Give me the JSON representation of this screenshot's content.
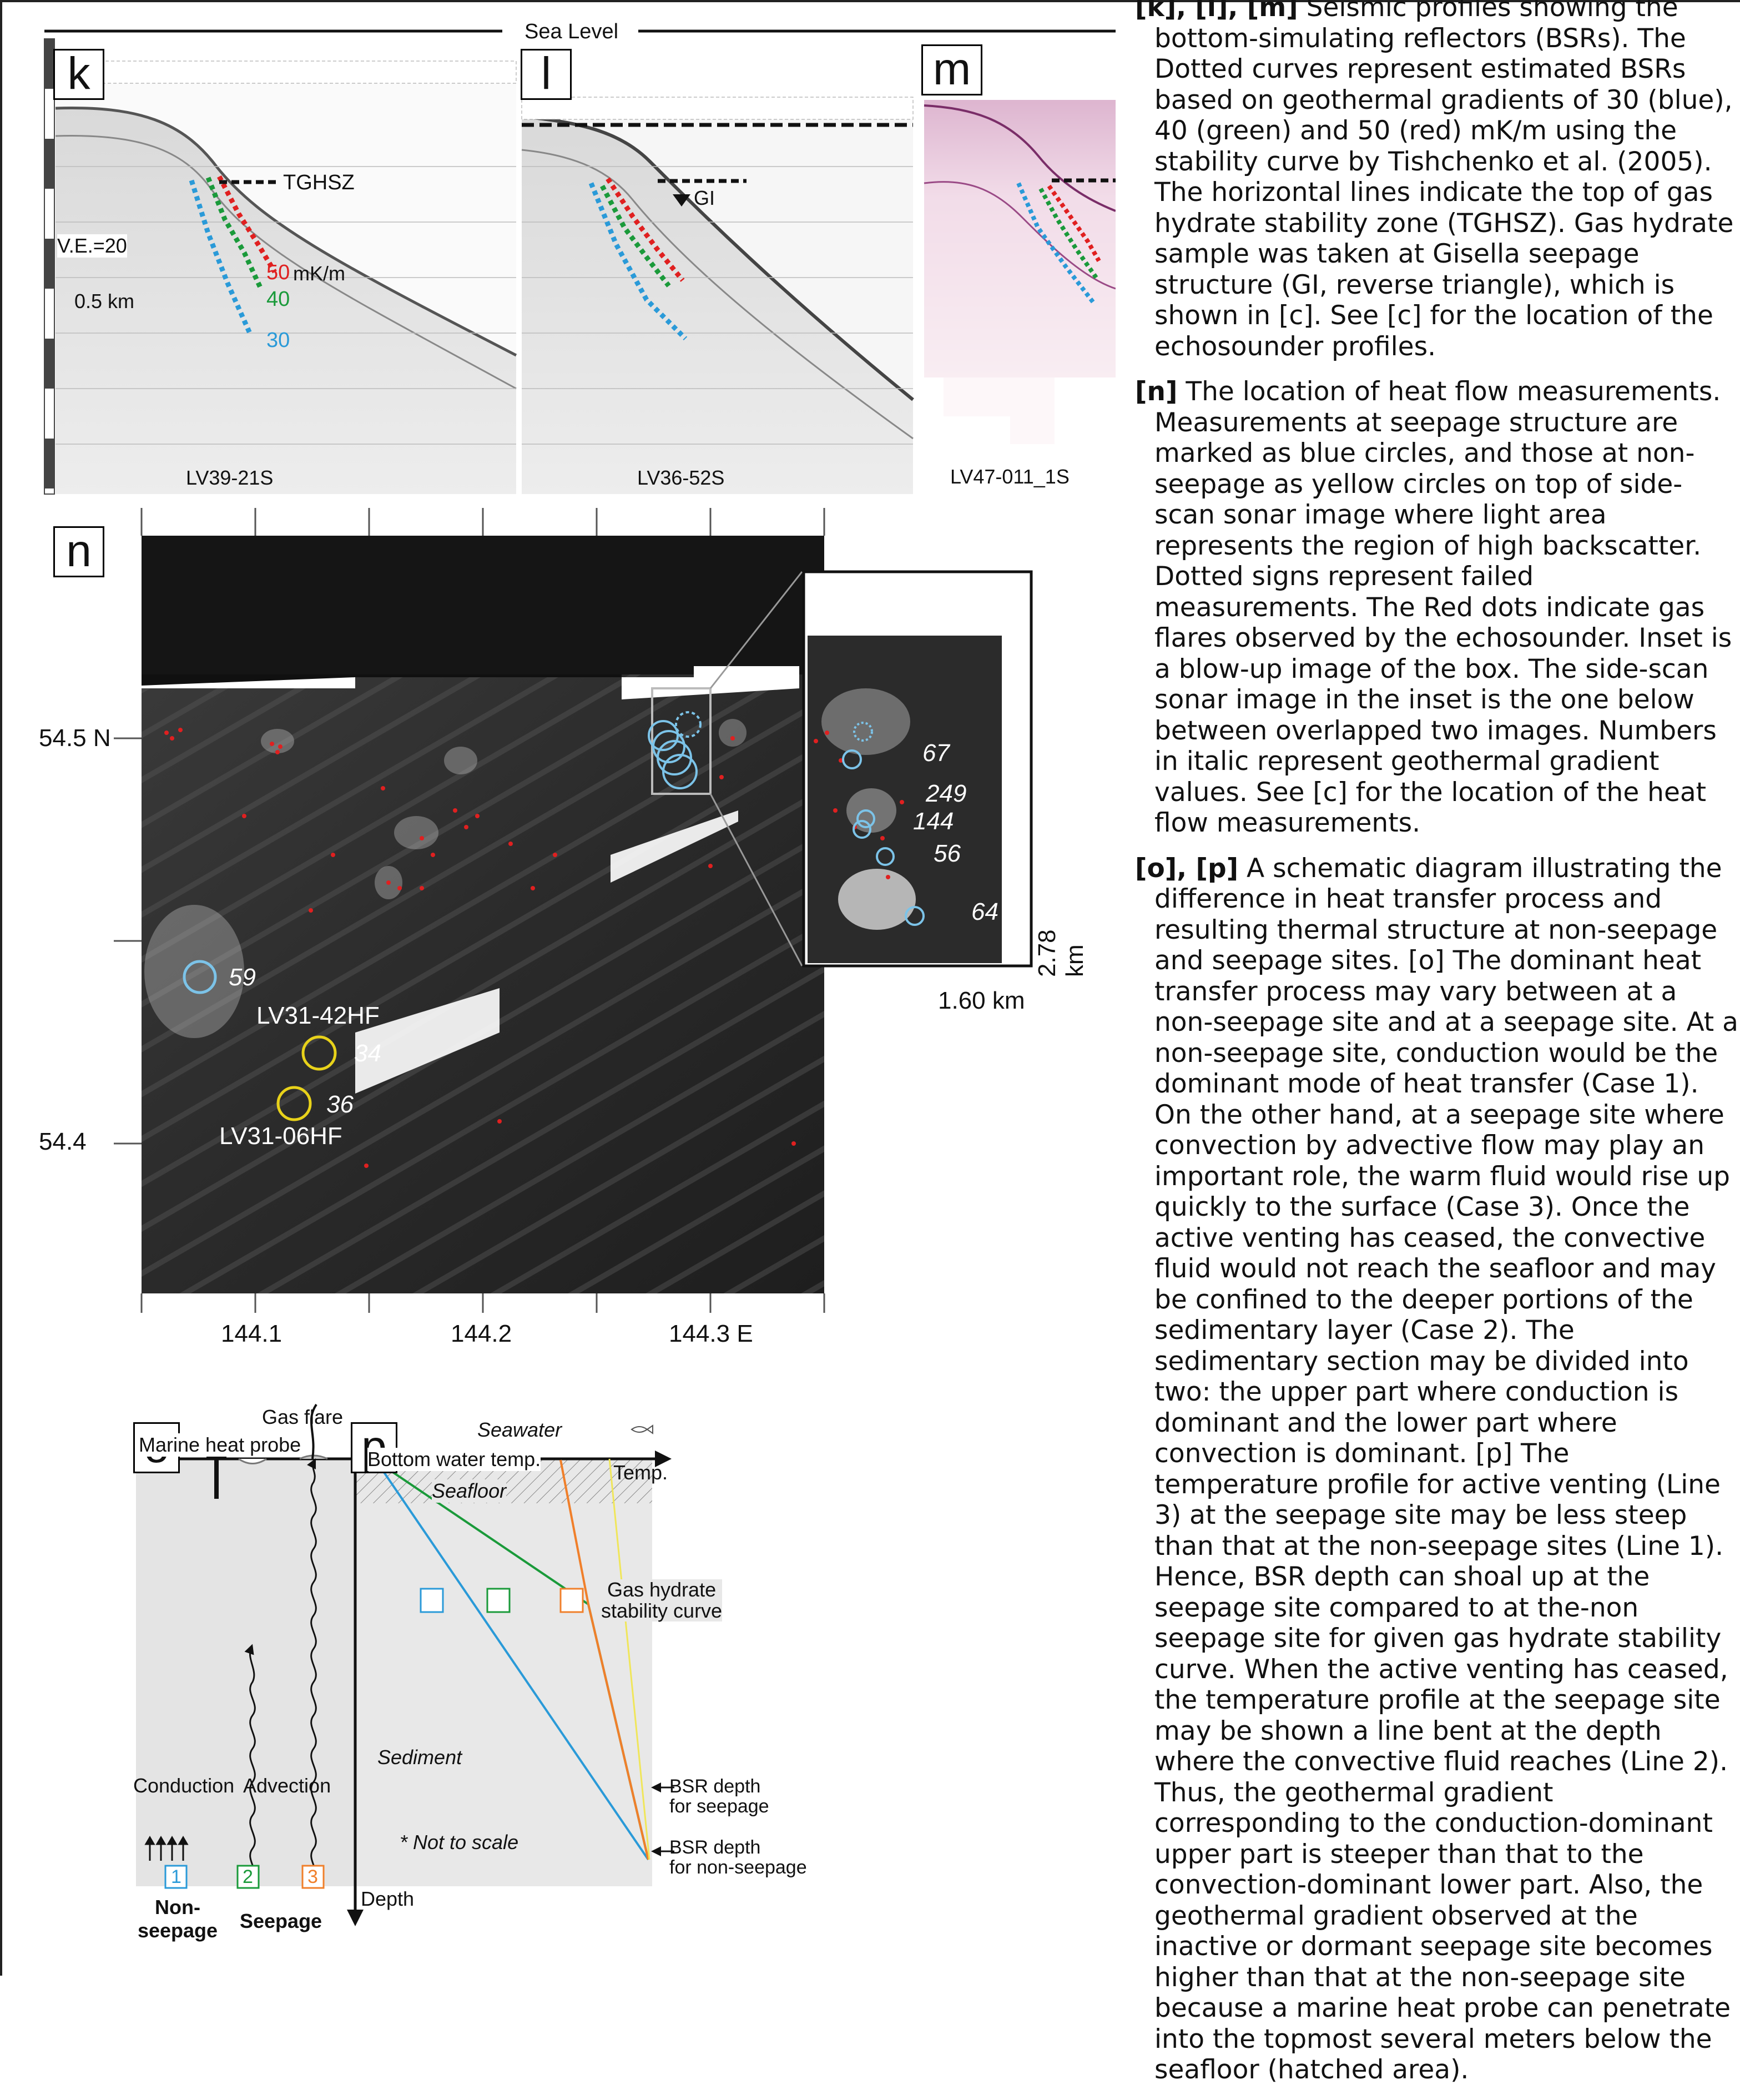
{
  "figure": {
    "top": {
      "sea_level": "Sea Level",
      "tghsz": "TGHSZ",
      "ve": "V.E.=20",
      "scale": "0.5 km",
      "gradients": {
        "g50": "50",
        "g40": "40",
        "g30": "30",
        "unit": "mK/m"
      },
      "gi": "GI",
      "panels": [
        {
          "label": "k",
          "profile": "LV39-21S"
        },
        {
          "label": "l",
          "profile": "LV36-52S"
        },
        {
          "label": "m",
          "profile": "LV47-011_1S"
        }
      ]
    },
    "map": {
      "label": "n",
      "lat_labels": [
        "54.5 N",
        "54.4"
      ],
      "lon_labels": [
        "144.1",
        "144.2",
        "144.3 E"
      ],
      "station_a": "LV31-42HF",
      "station_b": "LV31-06HF",
      "values": {
        "v59": "59",
        "v34": "34",
        "v36": "36"
      },
      "inset_values": {
        "v67": "67",
        "v249": "249",
        "v144": "144",
        "v56": "56",
        "v64": "64"
      },
      "inset_height": "2.78 km",
      "inset_width": "1.60 km"
    },
    "schematic": {
      "o_label": "o",
      "p_label": "p",
      "gas_flare": "Gas flare",
      "probe": "Marine heat probe",
      "conduction": "Conduction",
      "advection": "Advection",
      "case_1": "1",
      "case_2": "2",
      "case_3": "3",
      "non_seepage": "Non-\nseepage",
      "seepage": "Seepage",
      "seawater": "Seawater",
      "bottom_water": "Bottom water temp.",
      "temp": "Temp.",
      "seafloor": "Seafloor",
      "gh_curve": "Gas hydrate\nstability curve",
      "sediment": "Sediment",
      "not_to_scale": "* Not to scale",
      "depth": "Depth",
      "bsr_seep": "BSR depth\nfor seepage",
      "bsr_nonseep": "BSR depth\nfor non-seepage"
    }
  },
  "caption": {
    "p1_lead": "[k], [l], [m]",
    "p1_text": " Seismic profiles showing the bottom-simulating reflectors (BSRs). The Dotted curves represent estimated BSRs based on geothermal gradients of 30 (blue), 40 (green) and 50 (red) mK/m using the stability curve by Tishchenko et al. (2005). The horizontal lines indicate the top of gas hydrate stability zone (TGHSZ). Gas hydrate sample was taken at Gisella seepage structure (GI, reverse triangle), which is shown in [c]. See [c] for the location of the echosounder profiles.",
    "p2_lead": "[n]",
    "p2_text": " The location of heat flow measurements. Measurements at seepage structure are marked as blue circles, and those at non-seepage as yellow circles on top of side-scan sonar image where light area represents the region of high backscatter. Dotted signs represent failed measurements. The Red dots indicate gas flares observed by the echosounder. Inset is a blow-up image of the box. The side-scan sonar image in the inset is the one below between overlapped two images. Numbers in italic represent geothermal gradient values. See [c] for the location of the heat flow measurements.",
    "p3_lead": "[o], [p]",
    "p3_text": " A schematic diagram illustrating the difference in heat transfer process and resulting thermal structure at non-seepage and seepage sites. [o] The dominant heat transfer process may vary between at a non-seepage site and at a seepage site. At a non-seepage site, conduction would be the dominant mode of heat transfer (Case 1). On the other hand, at a seepage site where convection by advective flow may play an important role, the warm fluid would rise up quickly to the surface (Case 3). Once the active venting has ceased, the convective fluid would not reach the seafloor and may be confined to the deeper portions of the sedimentary layer (Case 2). The sedimentary section may be divided into two: the upper part where conduction is dominant and the lower part where convection is dominant. [p] The temperature profile for active venting (Line 3) at the seepage site may be less steep than that at the non-seepage sites (Line 1). Hence, BSR depth can shoal up at the seepage site compared to at the-non seepage site for given gas hydrate stability curve. When the active venting has ceased, the temperature profile at the seepage site may be shown a line bent at the depth where the convective fluid reaches (Line 2). Thus, the geothermal gradient corresponding to the conduction-dominant upper part is steeper than that to the convection-dominant lower part. Also, the geothermal gradient observed at the inactive or dormant seepage site becomes higher than that at the non-seepage site because a marine heat probe can penetrate into the topmost several meters below the seafloor (hatched area)."
  }
}
